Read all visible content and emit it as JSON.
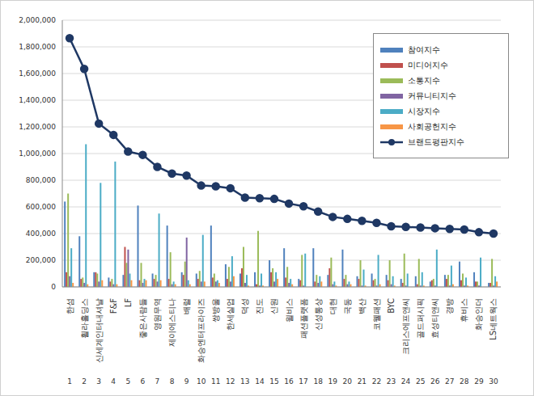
{
  "chart_data": {
    "type": "bar",
    "categories": [
      "한섬",
      "휠라홀딩스",
      "신세계인터내셔날",
      "F&F",
      "LF",
      "좋은사람들",
      "영원무역",
      "제이에스티나",
      "배럴",
      "화승엔터프라이즈",
      "쌍방울",
      "한세실업",
      "덕성",
      "진도",
      "신원",
      "윌비스",
      "패션플랫폼",
      "신성통상",
      "대현",
      "국동",
      "백산",
      "코웰패션",
      "BYC",
      "크리스에프앤씨",
      "골드퍼시픽",
      "효성티앤씨",
      "경방",
      "휴비스",
      "화승인더",
      "LS네트웍스"
    ],
    "ranks": [
      1,
      2,
      3,
      4,
      5,
      6,
      7,
      8,
      9,
      10,
      11,
      12,
      13,
      14,
      15,
      16,
      17,
      18,
      19,
      20,
      21,
      22,
      23,
      24,
      25,
      26,
      27,
      28,
      29,
      30
    ],
    "series": [
      {
        "name": "참여지수",
        "color": "#4f81bd",
        "values": [
          640000,
          380000,
          110000,
          70000,
          90000,
          610000,
          100000,
          460000,
          110000,
          100000,
          460000,
          170000,
          100000,
          110000,
          200000,
          290000,
          60000,
          290000,
          90000,
          280000,
          80000,
          100000,
          90000,
          60000,
          80000,
          40000,
          90000,
          190000,
          110000,
          30000
        ]
      },
      {
        "name": "미디어지수",
        "color": "#c0504d",
        "values": [
          110000,
          60000,
          110000,
          40000,
          300000,
          50000,
          60000,
          60000,
          90000,
          60000,
          70000,
          60000,
          140000,
          20000,
          110000,
          70000,
          50000,
          40000,
          140000,
          60000,
          60000,
          50000,
          50000,
          30000,
          20000,
          50000,
          60000,
          50000,
          40000,
          30000
        ]
      },
      {
        "name": "소통지수",
        "color": "#9bbb59",
        "values": [
          700000,
          70000,
          100000,
          60000,
          180000,
          180000,
          90000,
          260000,
          190000,
          120000,
          100000,
          150000,
          300000,
          420000,
          140000,
          150000,
          240000,
          90000,
          220000,
          90000,
          200000,
          60000,
          200000,
          250000,
          210000,
          60000,
          90000,
          100000,
          40000,
          210000
        ]
      },
      {
        "name": "커뮤니티지수",
        "color": "#8064a2",
        "values": [
          80000,
          30000,
          40000,
          20000,
          280000,
          30000,
          40000,
          20000,
          370000,
          40000,
          40000,
          40000,
          30000,
          10000,
          40000,
          30000,
          10000,
          30000,
          20000,
          20000,
          10000,
          10000,
          20000,
          10000,
          10000,
          10000,
          10000,
          10000,
          10000,
          10000
        ]
      },
      {
        "name": "시장지수",
        "color": "#4bacc6",
        "values": [
          290000,
          1070000,
          780000,
          940000,
          100000,
          60000,
          550000,
          40000,
          50000,
          390000,
          50000,
          230000,
          90000,
          100000,
          110000,
          60000,
          250000,
          80000,
          40000,
          40000,
          130000,
          240000,
          80000,
          100000,
          110000,
          280000,
          160000,
          70000,
          220000,
          80000
        ]
      },
      {
        "name": "사회공헌지수",
        "color": "#f79646",
        "values": [
          30000,
          20000,
          50000,
          20000,
          50000,
          50000,
          50000,
          20000,
          20000,
          40000,
          30000,
          80000,
          10000,
          10000,
          60000,
          20000,
          0,
          40000,
          10000,
          20000,
          10000,
          20000,
          10000,
          0,
          10000,
          0,
          20000,
          10000,
          0,
          40000
        ]
      },
      {
        "name": "브랜드평판지수",
        "color": "#1f3864",
        "type": "line",
        "marker": "circle",
        "values": [
          1865000,
          1635000,
          1225000,
          1140000,
          1015000,
          990000,
          900000,
          850000,
          835000,
          760000,
          755000,
          740000,
          670000,
          665000,
          660000,
          625000,
          605000,
          565000,
          525000,
          510000,
          495000,
          480000,
          455000,
          450000,
          445000,
          440000,
          435000,
          430000,
          410000,
          400000
        ]
      }
    ],
    "ylim": [
      0,
      2000000
    ],
    "yticks": [
      0,
      {
        "value": 200000,
        "label": "200,000"
      },
      {
        "value": 400000,
        "label": "400,000"
      },
      {
        "value": 600000,
        "label": "600,000"
      },
      {
        "value": 800000,
        "label": "800,000"
      },
      {
        "value": 1000000,
        "label": "1,000,000"
      },
      {
        "value": 1200000,
        "label": "1,200,000"
      },
      {
        "value": 1400000,
        "label": "1,400,000"
      },
      {
        "value": 1600000,
        "label": "1,600,000"
      },
      {
        "value": 1800000,
        "label": "1,800,000"
      },
      {
        "value": 2000000,
        "label": "2,000,000"
      }
    ],
    "grid": true,
    "legend": "upper right"
  }
}
